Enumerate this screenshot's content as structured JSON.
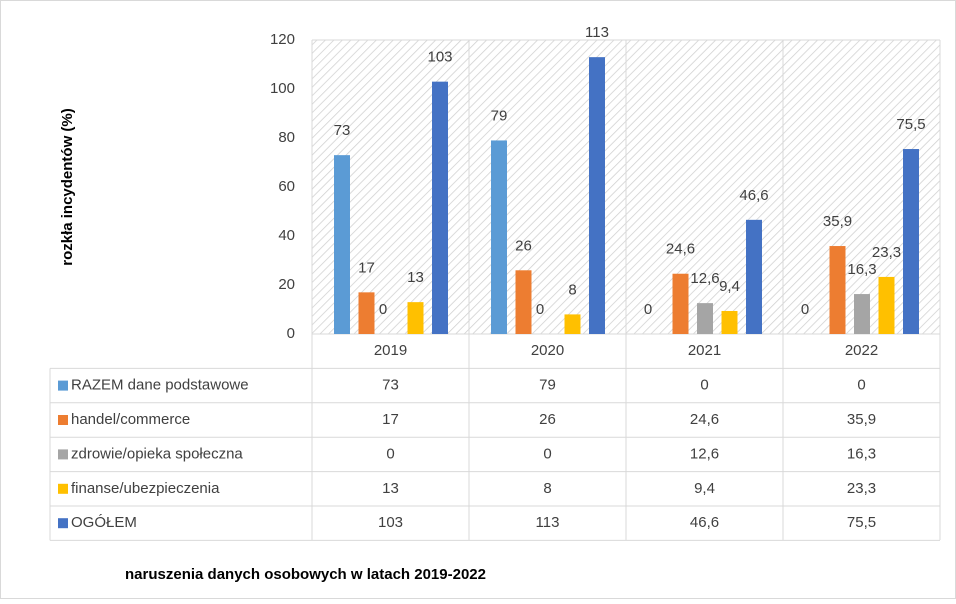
{
  "chart_data": {
    "type": "bar",
    "title": "naruszenia danych osobowych w latach 2019-2022",
    "y_label": "rozkła incydentów (%)",
    "categories": [
      "2019",
      "2020",
      "2021",
      "2022"
    ],
    "series": [
      {
        "name": "RAZEM dane podstawowe",
        "color": "#5b9bd5",
        "values": [
          73,
          79,
          0,
          0
        ],
        "value_labels": [
          "73",
          "79",
          "0",
          "0"
        ]
      },
      {
        "name": "handel/commerce",
        "color": "#ed7d31",
        "values": [
          17,
          26,
          24.6,
          35.9
        ],
        "value_labels": [
          "17",
          "26",
          "24,6",
          "35,9"
        ]
      },
      {
        "name": "zdrowie/opieka społeczna",
        "color": "#a5a5a5",
        "values": [
          0,
          0,
          12.6,
          16.3
        ],
        "value_labels": [
          "0",
          "0",
          "12,6",
          "16,3"
        ]
      },
      {
        "name": "finanse/ubezpieczenia",
        "color": "#ffc000",
        "values": [
          13,
          8,
          9.4,
          23.3
        ],
        "value_labels": [
          "13",
          "8",
          "9,4",
          "23,3"
        ]
      },
      {
        "name": "OGÓŁEM",
        "color": "#4472c4",
        "values": [
          103,
          113,
          46.6,
          75.5
        ],
        "value_labels": [
          "103",
          "113",
          "46,6",
          "75,5"
        ]
      }
    ],
    "ylim": [
      0,
      120
    ],
    "yticks": [
      0,
      20,
      40,
      60,
      80,
      100,
      120
    ]
  }
}
